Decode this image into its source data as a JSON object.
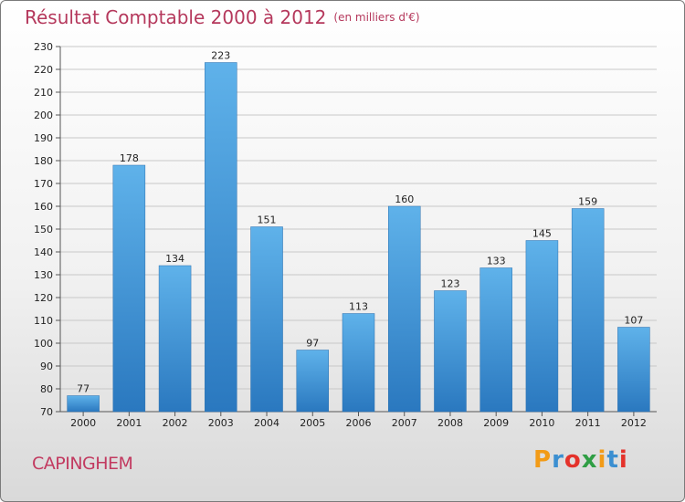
{
  "title": "Résultat Comptable 2000 à 2012",
  "subtitle": "(en milliers d'€)",
  "commune": "CAPINGHEM",
  "logo": {
    "letters": [
      "P",
      "r",
      "o",
      "x",
      "i",
      "t",
      "i"
    ],
    "colors": [
      "#f29b17",
      "#3b8fd1",
      "#e4322b",
      "#2f9e44",
      "#f29b17",
      "#3b8fd1",
      "#e4322b"
    ]
  },
  "colors": {
    "bar_top": "#5fb2ea",
    "bar_bottom": "#2a78bf",
    "title": "#b5385c",
    "grid": "#c8c8c8"
  },
  "chart_data": {
    "type": "bar",
    "title": "Résultat Comptable 2000 à 2012",
    "subtitle": "(en milliers d'€)",
    "categories": [
      "2000",
      "2001",
      "2002",
      "2003",
      "2004",
      "2005",
      "2006",
      "2007",
      "2008",
      "2009",
      "2010",
      "2011",
      "2012"
    ],
    "values": [
      77,
      178,
      134,
      223,
      151,
      97,
      113,
      160,
      123,
      133,
      145,
      159,
      107
    ],
    "ylim": [
      70,
      230
    ],
    "yticks": [
      70,
      80,
      90,
      100,
      110,
      120,
      130,
      140,
      150,
      160,
      170,
      180,
      190,
      200,
      210,
      220,
      230
    ],
    "grid": true,
    "data_labels": true
  }
}
